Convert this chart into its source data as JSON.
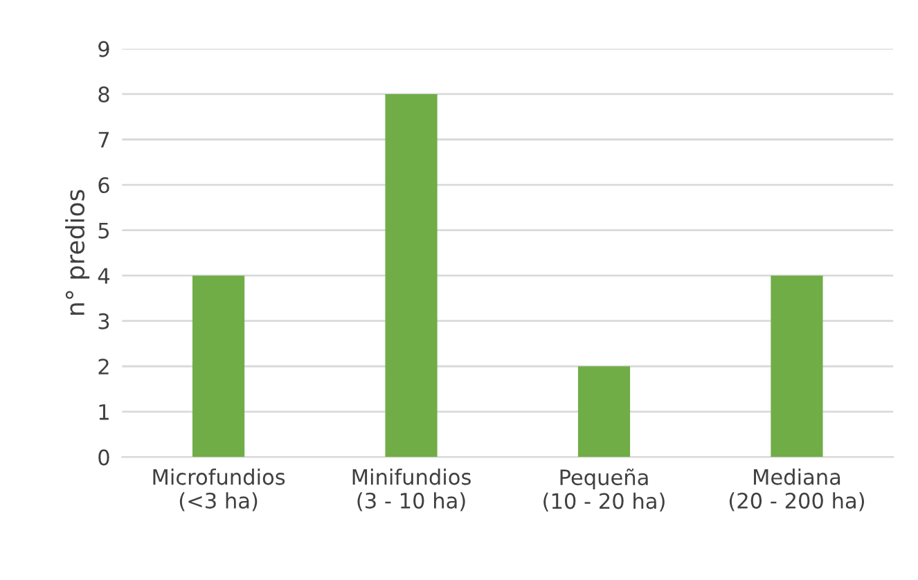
{
  "chart_data": {
    "type": "bar",
    "categories": [
      "Microfundios\n(<3 ha)",
      "Minifundios\n(3 - 10 ha)",
      "Pequeña\n(10 - 20 ha)",
      "Mediana\n(20 - 200 ha)"
    ],
    "values": [
      4,
      8,
      2,
      4
    ],
    "color": "#70ad47",
    "ylabel": "n° predios",
    "ylim": [
      0,
      9
    ],
    "yticks": [
      0,
      1,
      2,
      3,
      4,
      5,
      6,
      7,
      8,
      9
    ],
    "grid": "y",
    "legend": false
  }
}
